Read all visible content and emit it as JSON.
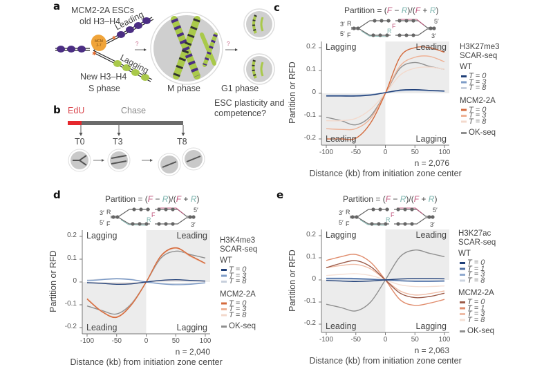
{
  "panel_a": {
    "letter": "a",
    "label_cells": "MCM2-2A ESCs",
    "label_old": "old H3–H4",
    "label_new": "New H3–H4",
    "label_leading": "Leading",
    "label_lagging": "Lagging",
    "mcm_label": "MCM 2-7",
    "question1": "?",
    "question2": "?",
    "phase_s": "S phase",
    "phase_m": "M phase",
    "phase_g1": "G1 phase",
    "question_text_1": "ESC plasticity and",
    "question_text_2": "competence?",
    "colors": {
      "old_histone": "#4b2e83",
      "new_histone": "#a9c94a",
      "mcm": "#f0a43a"
    }
  },
  "panel_b": {
    "letter": "b",
    "pulse_label": "EdU",
    "chase_label": "Chase",
    "timepoints": [
      "T0",
      "T3",
      "T8"
    ],
    "colors": {
      "pulse": "#e5272d",
      "chase": "#666666"
    }
  },
  "formula": {
    "prefix": "Partition = (",
    "F": "F",
    "minus": " − ",
    "R": "R",
    "mid": ")/(",
    "plus": " + ",
    "suffix": ")",
    "fork_3p": "3′",
    "fork_5p": "5′",
    "fork_R": "R",
    "fork_F": "F"
  },
  "chart_data": [
    {
      "panel": "c",
      "type": "line",
      "title": "Partition = (F − R)/(F + R)",
      "xlabel": "Distance (kb) from initiation zone center",
      "ylabel": "Partition or RFD",
      "xlim": [
        -100,
        100
      ],
      "ylim": [
        -0.22,
        0.22
      ],
      "xticks": [
        "-100",
        "-50",
        "0",
        "50",
        "100"
      ],
      "yticks": [
        "0.2",
        "0.1",
        "0",
        "-0.1",
        "-0.2"
      ],
      "quadrant_labels": {
        "top_left": "Lagging",
        "top_right": "Leading",
        "bottom_left": "Leading",
        "bottom_right": "Lagging"
      },
      "n_label": "n = 2,076",
      "legend": {
        "title1": "H3K27me3",
        "title2": "SCAR-seq",
        "group1": "WT",
        "group2": "MCM2-2A",
        "extra": "OK-seq"
      },
      "x": [
        -100,
        -75,
        -50,
        -25,
        0,
        25,
        50,
        75,
        100
      ],
      "series": [
        {
          "name": "WT T = 0",
          "group": "WT",
          "label": "T = 0",
          "color": "#1f3f78",
          "values": [
            -0.012,
            -0.012,
            -0.012,
            -0.008,
            0.003,
            0.014,
            0.016,
            0.013,
            0.01
          ]
        },
        {
          "name": "WT T = 3",
          "group": "WT",
          "label": "T = 3",
          "color": "#7e9cc7",
          "values": [
            -0.01,
            -0.01,
            -0.01,
            -0.006,
            0.003,
            0.012,
            0.014,
            0.012,
            0.009
          ]
        },
        {
          "name": "WT T = 8",
          "group": "WT",
          "label": "T = 8",
          "color": "#c7cfdc",
          "values": [
            -0.008,
            -0.008,
            -0.008,
            -0.005,
            0.002,
            0.01,
            0.012,
            0.01,
            0.008
          ]
        },
        {
          "name": "MCM2-2A T = 0",
          "group": "MCM2-2A",
          "label": "T = 0",
          "color": "#d46a3c",
          "values": [
            -0.2,
            -0.2,
            -0.197,
            -0.13,
            0.0,
            0.16,
            0.2,
            0.2,
            0.18
          ]
        },
        {
          "name": "MCM2-2A T = 3",
          "group": "MCM2-2A",
          "label": "T = 3",
          "color": "#eeb195",
          "values": [
            -0.155,
            -0.158,
            -0.155,
            -0.11,
            0.0,
            0.12,
            0.158,
            0.162,
            0.138
          ]
        },
        {
          "name": "MCM2-2A T = 8",
          "group": "MCM2-2A",
          "label": "T = 8",
          "color": "#f3d9cc",
          "values": [
            -0.12,
            -0.12,
            -0.11,
            -0.07,
            0.0,
            0.08,
            0.11,
            0.115,
            0.105
          ]
        },
        {
          "name": "OK-seq",
          "group": "extra",
          "label": "OK-seq",
          "color": "#8f8f8f",
          "values": [
            -0.105,
            -0.12,
            -0.138,
            -0.1,
            0.0,
            0.11,
            0.135,
            0.118,
            0.105
          ]
        }
      ]
    },
    {
      "panel": "d",
      "type": "line",
      "title": "Partition = (F − R)/(F + R)",
      "xlabel": "Distance (kb) from initiation zone center",
      "ylabel": "Partition or RFD",
      "xlim": [
        -100,
        100
      ],
      "ylim": [
        -0.22,
        0.22
      ],
      "xticks": [
        "-100",
        "-50",
        "0",
        "50",
        "100"
      ],
      "yticks": [
        "0.2",
        "0.1",
        "0",
        "-0.1",
        "-0.2"
      ],
      "quadrant_labels": {
        "top_left": "Lagging",
        "top_right": "Leading",
        "bottom_left": "Leading",
        "bottom_right": "Lagging"
      },
      "n_label": "n = 2,040",
      "legend": {
        "title1": "H3K4me3",
        "title2": "SCAR-seq",
        "group1": "WT",
        "group2": "MCM2-2A",
        "extra": "OK-seq"
      },
      "x": [
        -100,
        -75,
        -50,
        -25,
        0,
        25,
        50,
        75,
        100
      ],
      "series": [
        {
          "name": "WT T = 0",
          "group": "WT",
          "label": "T = 0",
          "color": "#1f3f78",
          "values": [
            -0.003,
            -0.006,
            -0.01,
            -0.008,
            0.0,
            0.007,
            0.01,
            0.007,
            0.004
          ]
        },
        {
          "name": "WT T = 3",
          "group": "WT",
          "label": "T = 3",
          "color": "#7e9cc7",
          "values": [
            0.005,
            0.01,
            0.014,
            0.01,
            0.0,
            -0.008,
            -0.012,
            -0.01,
            -0.004
          ]
        },
        {
          "name": "WT T = 8",
          "group": "WT",
          "label": "T = 8",
          "color": "#c7cfdc",
          "values": [
            0.008,
            0.012,
            0.016,
            0.012,
            0.0,
            -0.006,
            -0.008,
            -0.006,
            -0.003
          ]
        },
        {
          "name": "MCM2-2A T = 0",
          "group": "MCM2-2A",
          "label": "T = 0",
          "color": "#d46a3c",
          "values": [
            -0.075,
            -0.13,
            -0.155,
            -0.1,
            0.0,
            0.115,
            0.15,
            0.115,
            0.082
          ]
        },
        {
          "name": "MCM2-2A T = 3",
          "group": "MCM2-2A",
          "label": "T = 3",
          "color": "#eeb195",
          "values": [
            -0.072,
            -0.128,
            -0.152,
            -0.098,
            0.0,
            0.112,
            0.148,
            0.112,
            0.08
          ]
        },
        {
          "name": "MCM2-2A T = 8",
          "group": "MCM2-2A",
          "label": "T = 8",
          "color": "#f3d9cc",
          "values": [
            -0.003,
            -0.005,
            -0.008,
            -0.006,
            0.0,
            0.005,
            0.008,
            0.006,
            0.003
          ]
        },
        {
          "name": "OK-seq",
          "group": "extra",
          "label": "OK-seq",
          "color": "#8f8f8f",
          "values": [
            -0.105,
            -0.125,
            -0.14,
            -0.095,
            0.0,
            0.105,
            0.135,
            0.12,
            0.105
          ]
        }
      ]
    },
    {
      "panel": "e",
      "type": "line",
      "title": "Partition = (F − R)/(F + R)",
      "xlabel": "Distance (kb) from initiation zone center",
      "ylabel": "Partition or RFD",
      "xlim": [
        -100,
        100
      ],
      "ylim": [
        -0.22,
        0.22
      ],
      "xticks": [
        "-100",
        "-50",
        "0",
        "50",
        "100"
      ],
      "yticks": [
        "0.2",
        "0.1",
        "0",
        "-0.1",
        "-0.2"
      ],
      "quadrant_labels": {
        "top_left": "Lagging",
        "top_right": "Leading",
        "bottom_left": "Leading",
        "bottom_right": "Lagging"
      },
      "n_label": "n = 2,063",
      "legend": {
        "title1": "H3K27ac",
        "title2": "SCAR-seq",
        "group1": "WT",
        "group2": "MCM2-2A",
        "extra": "OK-seq"
      },
      "x": [
        -100,
        -75,
        -50,
        -25,
        0,
        25,
        50,
        75,
        100
      ],
      "series": [
        {
          "name": "WT T = 0",
          "group": "WT",
          "label": "T = 0",
          "color": "#1f3f78",
          "values": [
            -0.002,
            -0.005,
            -0.007,
            -0.005,
            0.0,
            0.004,
            0.006,
            0.006,
            0.005
          ]
        },
        {
          "name": "WT T = 1",
          "group": "WT",
          "label": "T = 1",
          "color": "#4f6fa3",
          "values": [
            0.006,
            0.006,
            0.005,
            0.003,
            0.0,
            -0.004,
            -0.006,
            -0.006,
            -0.005
          ]
        },
        {
          "name": "WT T = 3",
          "group": "WT",
          "label": "T = 3",
          "color": "#8fa9cf",
          "values": [
            0.008,
            0.008,
            0.007,
            0.004,
            0.0,
            -0.004,
            -0.007,
            -0.007,
            -0.006
          ]
        },
        {
          "name": "WT T = 8",
          "group": "WT",
          "label": "T = 8",
          "color": "#cdd5e0",
          "values": [
            0.003,
            0.003,
            0.003,
            0.002,
            0.0,
            -0.002,
            -0.003,
            -0.003,
            -0.002
          ]
        },
        {
          "name": "MCM2-2A T = 0",
          "group": "MCM2-2A",
          "label": "T = 0",
          "color": "#9b5a48",
          "values": [
            0.055,
            0.075,
            0.087,
            0.06,
            0.0,
            -0.06,
            -0.08,
            -0.075,
            -0.06
          ]
        },
        {
          "name": "MCM2-2A T = 1",
          "group": "MCM2-2A",
          "label": "T = 1",
          "color": "#e08c6c",
          "values": [
            0.088,
            0.105,
            0.115,
            0.08,
            0.0,
            -0.09,
            -0.115,
            -0.105,
            -0.088
          ]
        },
        {
          "name": "MCM2-2A T = 3",
          "group": "MCM2-2A",
          "label": "T = 3",
          "color": "#efbca6",
          "values": [
            0.055,
            0.065,
            0.07,
            0.05,
            0.0,
            -0.05,
            -0.068,
            -0.062,
            -0.05
          ]
        },
        {
          "name": "MCM2-2A T = 8",
          "group": "MCM2-2A",
          "label": "T = 8",
          "color": "#f5e0d6",
          "values": [
            0.02,
            0.025,
            0.028,
            0.02,
            0.0,
            -0.022,
            -0.03,
            -0.03,
            -0.027
          ]
        },
        {
          "name": "OK-seq",
          "group": "extra",
          "label": "OK-seq",
          "color": "#8f8f8f",
          "values": [
            -0.11,
            -0.125,
            -0.14,
            -0.1,
            0.0,
            0.105,
            0.135,
            0.12,
            0.105
          ]
        }
      ]
    }
  ]
}
